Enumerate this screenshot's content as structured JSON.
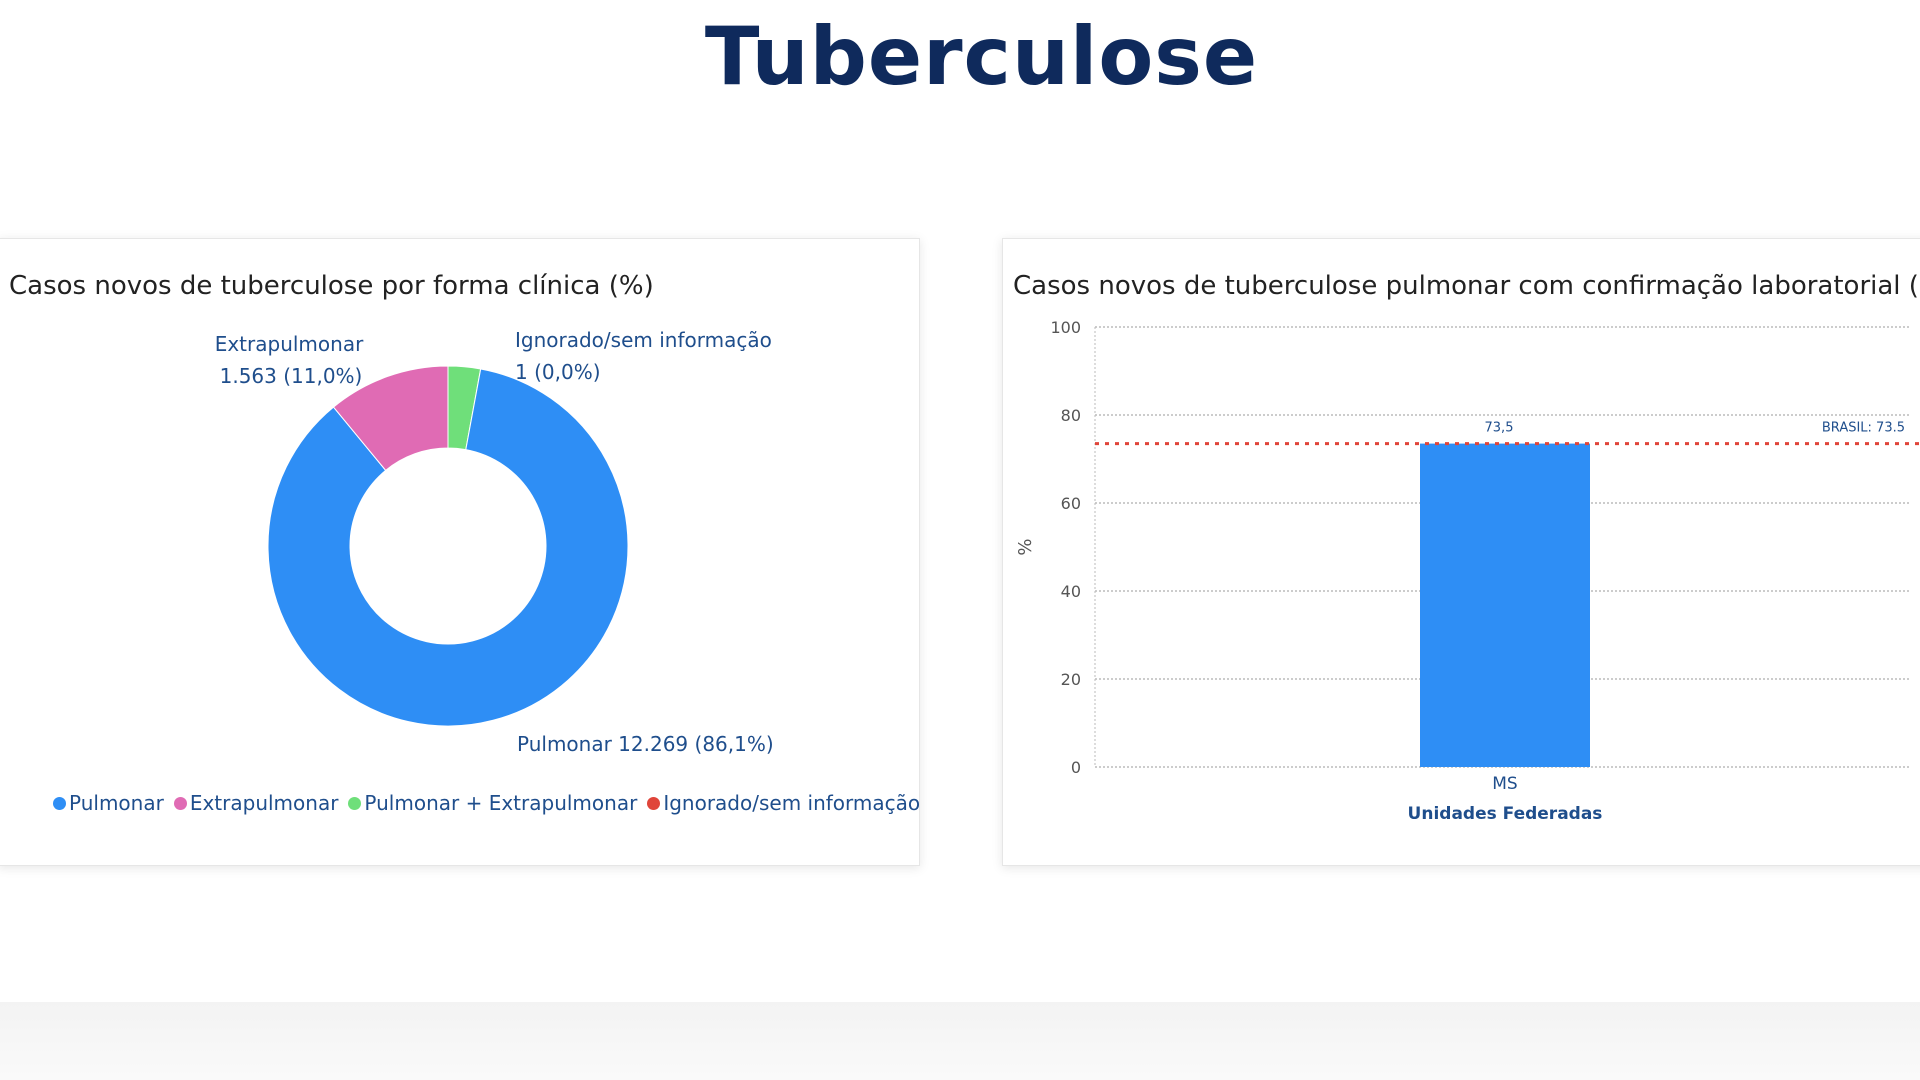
{
  "page": {
    "title": "Tuberculose"
  },
  "chart_data": [
    {
      "type": "pie",
      "variant": "donut",
      "title": "Casos novos de tuberculose por forma clínica (%)",
      "slices": [
        {
          "name": "Pulmonar",
          "value": 12269,
          "label": "Pulmonar 12.269 (86,1%)",
          "color": "#2e8ef5"
        },
        {
          "name": "Extrapulmonar",
          "value": 1563,
          "label_line1": "Extrapulmonar",
          "label_line2": "1.563 (11,0%)",
          "color": "#e06bb4"
        },
        {
          "name": "Pulmonar + Extrapulmonar",
          "value": 413,
          "color": "#6fdf7a"
        },
        {
          "name": "Ignorado/sem informação",
          "value": 1,
          "label_line1": "Ignorado/sem informação",
          "label_line2": "1 (0,0%)",
          "color": "#e0453a"
        }
      ],
      "legend": [
        "Pulmonar",
        "Extrapulmonar",
        "Pulmonar + Extrapulmonar",
        "Ignorado/sem informação"
      ],
      "legend_position": "bottom"
    },
    {
      "type": "bar",
      "title": "Casos novos de tuberculose pulmonar com confirmação laboratorial (%)",
      "categories": [
        "MS"
      ],
      "values": [
        73.5
      ],
      "value_labels": [
        "73,5"
      ],
      "ylabel": "%",
      "xlabel": "Unidades Federadas",
      "ylim": [
        0,
        100
      ],
      "yticks": [
        0,
        20,
        40,
        60,
        80,
        100
      ],
      "grid": true,
      "bar_color": "#2e8ef5",
      "reference_line": {
        "value": 73.5,
        "label": "BRASIL: 73.5",
        "color": "#e0453a",
        "style": "dotted"
      }
    }
  ]
}
